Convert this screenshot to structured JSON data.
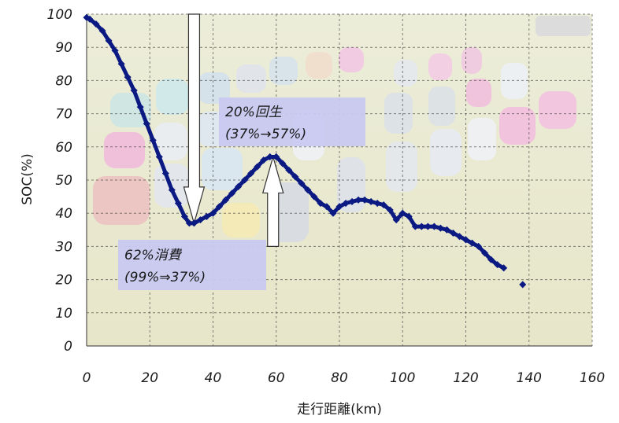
{
  "chart_data": {
    "type": "line",
    "xlabel": "走行距離(km)",
    "ylabel": "SOC(%)",
    "xlim": [
      0,
      160
    ],
    "ylim": [
      0,
      100
    ],
    "x_ticks": [
      "0",
      "20",
      "40",
      "60",
      "80",
      "100",
      "120",
      "140",
      "160"
    ],
    "y_ticks": [
      "0",
      "10",
      "20",
      "30",
      "40",
      "50",
      "60",
      "70",
      "80",
      "90",
      "100"
    ],
    "grid": true,
    "background": "photo of parked electric cars on grass",
    "series": [
      {
        "name": "",
        "color": "#0b1a82",
        "x": [
          0,
          1,
          3,
          5,
          7,
          9,
          11,
          13,
          15,
          17,
          19,
          21,
          23,
          25,
          27,
          29,
          31,
          32.5,
          34,
          36,
          38,
          40,
          42,
          44,
          46,
          48,
          50,
          52,
          54,
          56,
          58,
          60,
          62,
          64,
          66,
          68,
          70,
          72,
          74,
          76,
          78,
          80,
          82,
          84,
          86,
          88,
          90,
          92,
          94,
          96,
          98,
          100,
          102,
          104,
          106,
          108,
          110,
          112,
          114,
          116,
          118,
          120,
          122,
          124,
          126,
          128,
          130,
          132
        ],
        "y": [
          99,
          98.5,
          97,
          95,
          92,
          89,
          85,
          81,
          77,
          72,
          67,
          62,
          57,
          52,
          47,
          43,
          39,
          37,
          37,
          38,
          39,
          40,
          42,
          44,
          46,
          48,
          50,
          52,
          54,
          56,
          57,
          57,
          55,
          53,
          51,
          49,
          47,
          45,
          43,
          42,
          40,
          42,
          43,
          43.5,
          44,
          44,
          43.5,
          43,
          42.5,
          41,
          38,
          40,
          39,
          36,
          36,
          36,
          36,
          35.5,
          35,
          34,
          33,
          32,
          31,
          30,
          28,
          26,
          24.5,
          23.5
        ]
      }
    ],
    "outlier_point": {
      "x": 138,
      "y": 18.5
    },
    "annotations": [
      {
        "text_line1": "20%回生",
        "text_line2": "(37%→57%)"
      },
      {
        "text_line1": "62%消費",
        "text_line2": "(99%⇒37%)"
      }
    ],
    "arrows": [
      {
        "direction": "down",
        "x": 34,
        "y_from": 100,
        "y_to": 37
      },
      {
        "direction": "up",
        "x": 59,
        "y_from": 30,
        "y_to": 57
      }
    ]
  }
}
